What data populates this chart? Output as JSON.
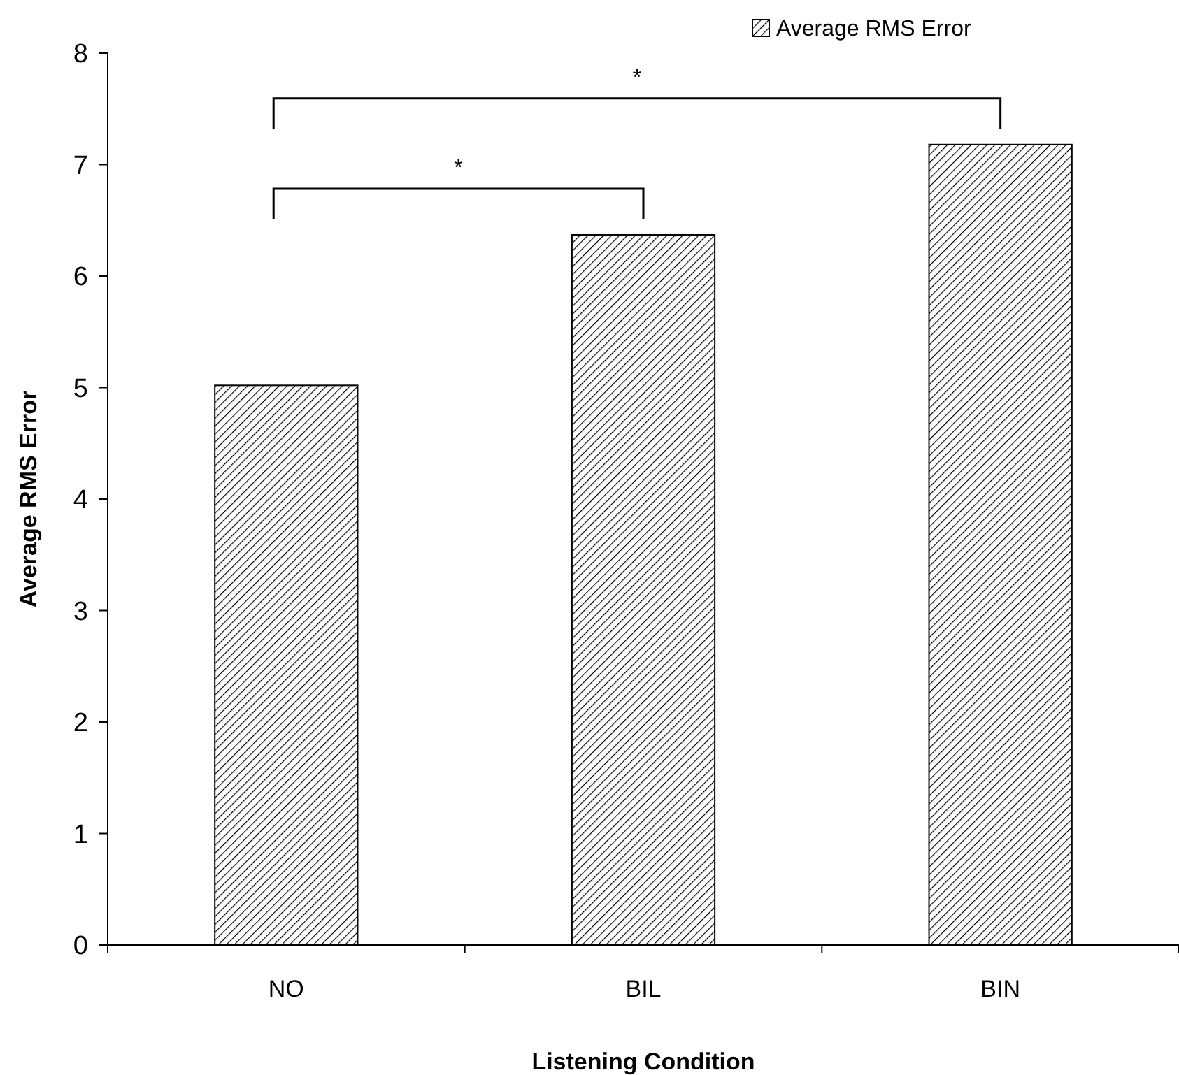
{
  "chart_data": {
    "type": "bar",
    "xlabel": "Listening Condition",
    "ylabel": "Average RMS Error",
    "categories": [
      "NO",
      "BIL",
      "BIN"
    ],
    "series": [
      {
        "name": "Average RMS Error",
        "color": "#000000",
        "values": [
          5.02,
          6.37,
          7.18
        ]
      }
    ],
    "ylim": [
      0,
      8
    ],
    "yticks": [
      0,
      1,
      2,
      3,
      4,
      5,
      6,
      7,
      8
    ],
    "grid": false,
    "legend": "top right",
    "annotations": [
      "*",
      "*"
    ]
  }
}
